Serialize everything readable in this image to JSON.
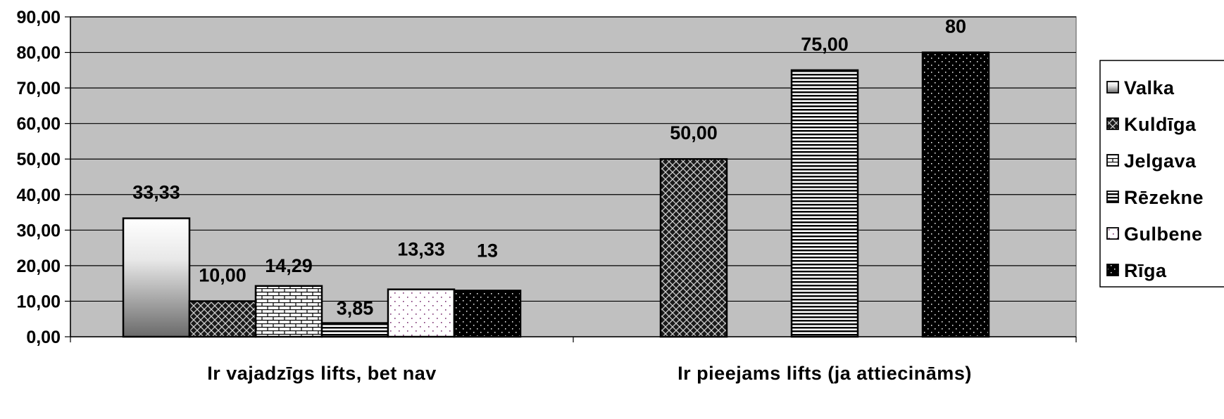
{
  "chart_data": {
    "type": "bar",
    "title": "",
    "xlabel": "",
    "ylabel": "",
    "ylim": [
      0,
      90
    ],
    "ytick_step": 10,
    "ytick_labels": [
      "0,00",
      "10,00",
      "20,00",
      "30,00",
      "40,00",
      "50,00",
      "60,00",
      "70,00",
      "80,00",
      "90,00"
    ],
    "grid": true,
    "plot_background": "#c0c0c0",
    "legend_position": "right",
    "categories": [
      "Ir vajadzīgs lifts, bet nav",
      "Ir pieejams lifts (ja attiecināms)"
    ],
    "series": [
      {
        "name": "Valka",
        "pattern": "gradient",
        "values": [
          33.33,
          null
        ],
        "labels": [
          "33,33",
          ""
        ]
      },
      {
        "name": "Kuldīga",
        "pattern": "diamond",
        "values": [
          10.0,
          50.0
        ],
        "labels": [
          "10,00",
          "50,00"
        ]
      },
      {
        "name": "Jelgava",
        "pattern": "brick",
        "values": [
          14.29,
          null
        ],
        "labels": [
          "14,29",
          ""
        ]
      },
      {
        "name": "Rēzekne",
        "pattern": "hlines",
        "values": [
          3.85,
          75.0
        ],
        "labels": [
          "3,85",
          "75,00"
        ]
      },
      {
        "name": "Gulbene",
        "pattern": "sparse-dots",
        "values": [
          13.33,
          null
        ],
        "labels": [
          "13,33",
          ""
        ]
      },
      {
        "name": "Rīga",
        "pattern": "dense-dots",
        "values": [
          13,
          80
        ],
        "labels": [
          "13",
          "80"
        ]
      }
    ]
  }
}
